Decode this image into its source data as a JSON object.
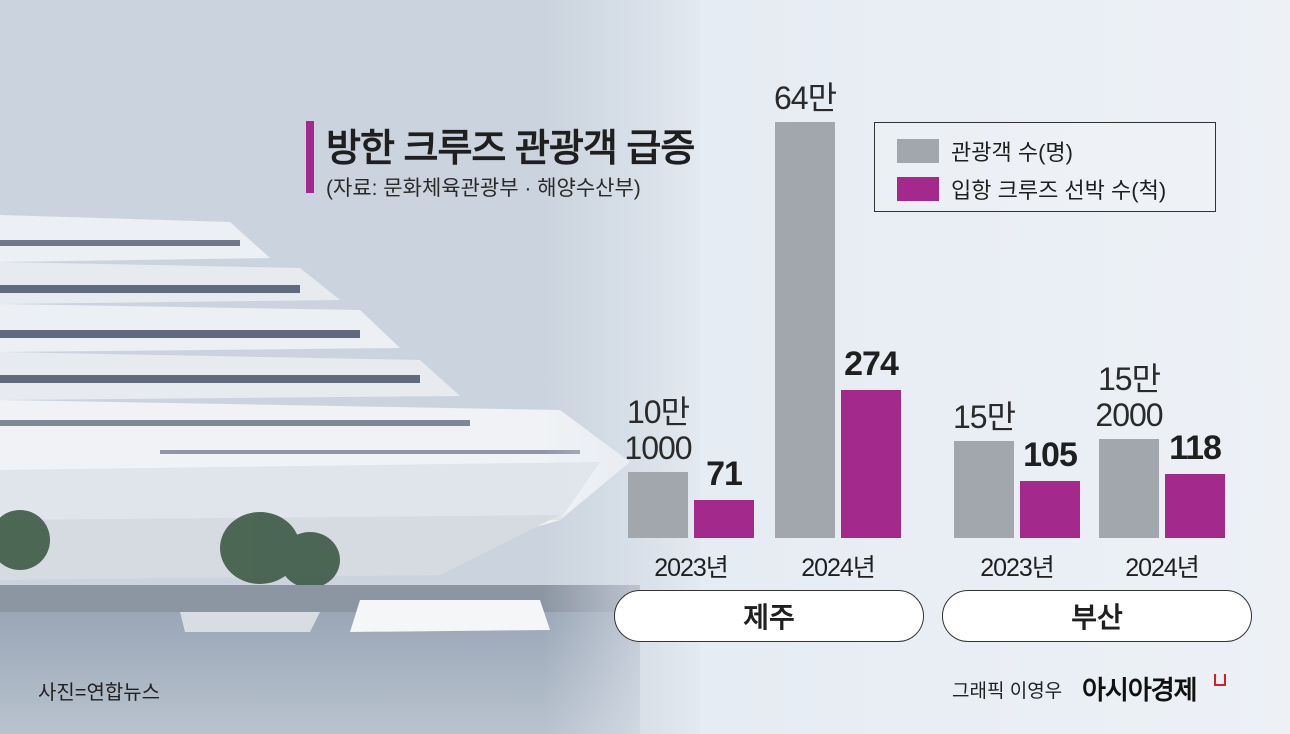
{
  "title": "방한 크루즈 관광객 급증",
  "source": "(자료: 문화체육관광부 · 해양수산부)",
  "photo_credit": "사진=연합뉴스",
  "graphic_credit": "그래픽 이영우",
  "brand": "아시아경제",
  "colors": {
    "tourists": "#a2a7ae",
    "cruise": "#a32a8c",
    "accent": "#a32a8c"
  },
  "chart_data": {
    "type": "bar",
    "title": "방한 크루즈 관광객 급증",
    "legend": [
      {
        "name": "관광객 수(명)",
        "color": "#a2a7ae"
      },
      {
        "name": "입항 크루즈 선박 수(척)",
        "color": "#a32a8c"
      }
    ],
    "legend_position": "top-right",
    "groups": [
      {
        "region": "제주",
        "years": [
          {
            "year": "2023년",
            "tourists": 101000,
            "tourists_label_lines": [
              "10만",
              "1000"
            ],
            "cruise": 71,
            "cruise_label": "71"
          },
          {
            "year": "2024년",
            "tourists": 640000,
            "tourists_label_lines": [
              "64만"
            ],
            "cruise": 274,
            "cruise_label": "274"
          }
        ]
      },
      {
        "region": "부산",
        "years": [
          {
            "year": "2023년",
            "tourists": 150000,
            "tourists_label_lines": [
              "15만"
            ],
            "cruise": 105,
            "cruise_label": "105"
          },
          {
            "year": "2024년",
            "tourists": 152000,
            "tourists_label_lines": [
              "15만",
              "2000"
            ],
            "cruise": 118,
            "cruise_label": "118"
          }
        ]
      }
    ]
  }
}
